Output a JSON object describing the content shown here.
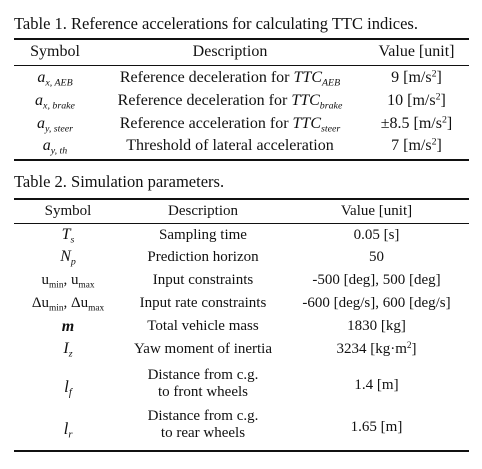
{
  "table1": {
    "caption": "Table 1. Reference accelerations for calculating TTC indices.",
    "headers": {
      "symbol": "Symbol",
      "description": "Description",
      "value": "Value [unit]"
    },
    "rows": [
      {
        "sym": "a",
        "sym_sub": "x, AEB",
        "desc": "Reference deceleration for ",
        "desc_it": "TTC",
        "desc_sub": "AEB",
        "val": "9 [m/s",
        "val_sup": "2",
        "val_end": "]"
      },
      {
        "sym": "a",
        "sym_sub": "x, brake",
        "desc": "Reference deceleration for ",
        "desc_it": "TTC",
        "desc_sub": "brake",
        "val": "10 [m/s",
        "val_sup": "2",
        "val_end": "]"
      },
      {
        "sym": "a",
        "sym_sub": "y, steer",
        "desc": "Reference acceleration for ",
        "desc_it": "TTC",
        "desc_sub": "steer",
        "val": "±8.5 [m/s",
        "val_sup": "2",
        "val_end": "]"
      },
      {
        "sym": "a",
        "sym_sub": "y, th",
        "desc": "Threshold of lateral acceleration",
        "desc_it": "",
        "desc_sub": "",
        "val": "7 [m/s",
        "val_sup": "2",
        "val_end": "]"
      }
    ]
  },
  "table2": {
    "caption": "Table 2. Simulation parameters.",
    "headers": {
      "symbol": "Symbol",
      "description": "Description",
      "value": "Value [unit]"
    },
    "rows": [
      {
        "sym": "T",
        "sym_sub": "s",
        "desc": "Sampling time",
        "val": "0.05 [s]"
      },
      {
        "sym": "N",
        "sym_sub": "p",
        "desc": "Prediction horizon",
        "val": "50"
      },
      {
        "sym_a": "u",
        "sym_a_sub": "min",
        "sym_sep": ", ",
        "sym_b": "u",
        "sym_b_sub": "max",
        "desc": "Input constraints",
        "val": "-500 [deg], 500 [deg]"
      },
      {
        "sym_a": "Δu",
        "sym_a_sub": "min",
        "sym_sep": ", ",
        "sym_b": "Δu",
        "sym_b_sub": "max",
        "desc": "Input rate constraints",
        "val": "-600 [deg/s], 600 [deg/s]"
      },
      {
        "sym": "m",
        "desc": "Total vehicle mass",
        "val": "1830 [kg]"
      },
      {
        "sym": "I",
        "sym_sub": "z",
        "desc": "Yaw moment of inertia",
        "val": "3234 [kg·m",
        "val_sup": "2",
        "val_end": "]"
      },
      {
        "sym": "l",
        "sym_sub": "f",
        "desc_l1": "Distance from c.g.",
        "desc_l2": "to front wheels",
        "val": "1.4 [m]"
      },
      {
        "sym": "l",
        "sym_sub": "r",
        "desc_l1": "Distance from c.g.",
        "desc_l2": "to rear wheels",
        "val": "1.65 [m]"
      }
    ]
  }
}
